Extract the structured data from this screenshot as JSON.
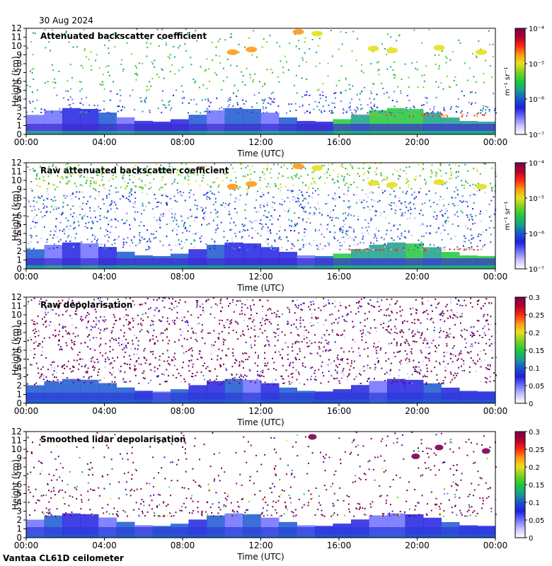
{
  "header": {
    "date": "30 Aug 2024"
  },
  "footer": {
    "instrument": "Vantaa CL61D ceilometer"
  },
  "colors": {
    "colormap": [
      "#ffffff",
      "#c9c3ff",
      "#6f6fff",
      "#2020e0",
      "#1a56d0",
      "#1aa08a",
      "#1ec83c",
      "#7ad21e",
      "#e8e01e",
      "#ff9a14",
      "#ff2814",
      "#b4002a",
      "#780050"
    ]
  },
  "chart_data": [
    {
      "type": "heatmap",
      "title": "Attenuated backscatter coefficient",
      "xlabel": "Time (UTC)",
      "ylabel": "Height (km)",
      "xticks": [
        "00:00",
        "04:00",
        "08:00",
        "12:00",
        "16:00",
        "20:00",
        "00:00"
      ],
      "yticks": [
        "0",
        "1",
        "2",
        "3",
        "4",
        "5",
        "6",
        "7",
        "8",
        "9",
        "10",
        "11",
        "12"
      ],
      "ylim": [
        0,
        12
      ],
      "colorbar": {
        "scale": "log",
        "unit_label": "m⁻¹ sr⁻¹",
        "ticks": [
          "10⁻⁷",
          "10⁻⁶",
          "10⁻⁵",
          "10⁻⁴"
        ]
      }
    },
    {
      "type": "heatmap",
      "title": "Raw attenuated backscatter coefficient",
      "xlabel": "Time (UTC)",
      "ylabel": "Height (km)",
      "xticks": [
        "00:00",
        "04:00",
        "08:00",
        "12:00",
        "16:00",
        "20:00",
        "00:00"
      ],
      "yticks": [
        "0",
        "1",
        "2",
        "3",
        "4",
        "5",
        "6",
        "7",
        "8",
        "9",
        "10",
        "11",
        "12"
      ],
      "ylim": [
        0,
        12
      ],
      "colorbar": {
        "scale": "log",
        "unit_label": "m⁻¹ sr⁻¹",
        "ticks": [
          "10⁻⁷",
          "10⁻⁶",
          "10⁻⁵",
          "10⁻⁴"
        ]
      }
    },
    {
      "type": "heatmap",
      "title": "Raw depolarisation",
      "xlabel": "Time (UTC)",
      "ylabel": "Height (km)",
      "xticks": [
        "00:00",
        "04:00",
        "08:00",
        "12:00",
        "16:00",
        "20:00",
        "00:00"
      ],
      "yticks": [
        "0",
        "1",
        "2",
        "3",
        "4",
        "5",
        "6",
        "7",
        "8",
        "9",
        "10",
        "11",
        "12"
      ],
      "ylim": [
        0,
        12
      ],
      "colorbar": {
        "scale": "linear",
        "unit_label": "",
        "ticks": [
          "0",
          "0.05",
          "0.1",
          "0.15",
          "0.2",
          "0.25",
          "0.3"
        ]
      }
    },
    {
      "type": "heatmap",
      "title": "Smoothed lidar depolarisation",
      "xlabel": "Time (UTC)",
      "ylabel": "Height (km)",
      "xticks": [
        "00:00",
        "04:00",
        "08:00",
        "12:00",
        "16:00",
        "20:00",
        "00:00"
      ],
      "yticks": [
        "0",
        "1",
        "2",
        "3",
        "4",
        "5",
        "6",
        "7",
        "8",
        "9",
        "10",
        "11",
        "12"
      ],
      "ylim": [
        0,
        12
      ],
      "colorbar": {
        "scale": "linear",
        "unit_label": "",
        "ticks": [
          "0",
          "0.05",
          "0.1",
          "0.15",
          "0.2",
          "0.25",
          "0.3"
        ]
      }
    }
  ]
}
